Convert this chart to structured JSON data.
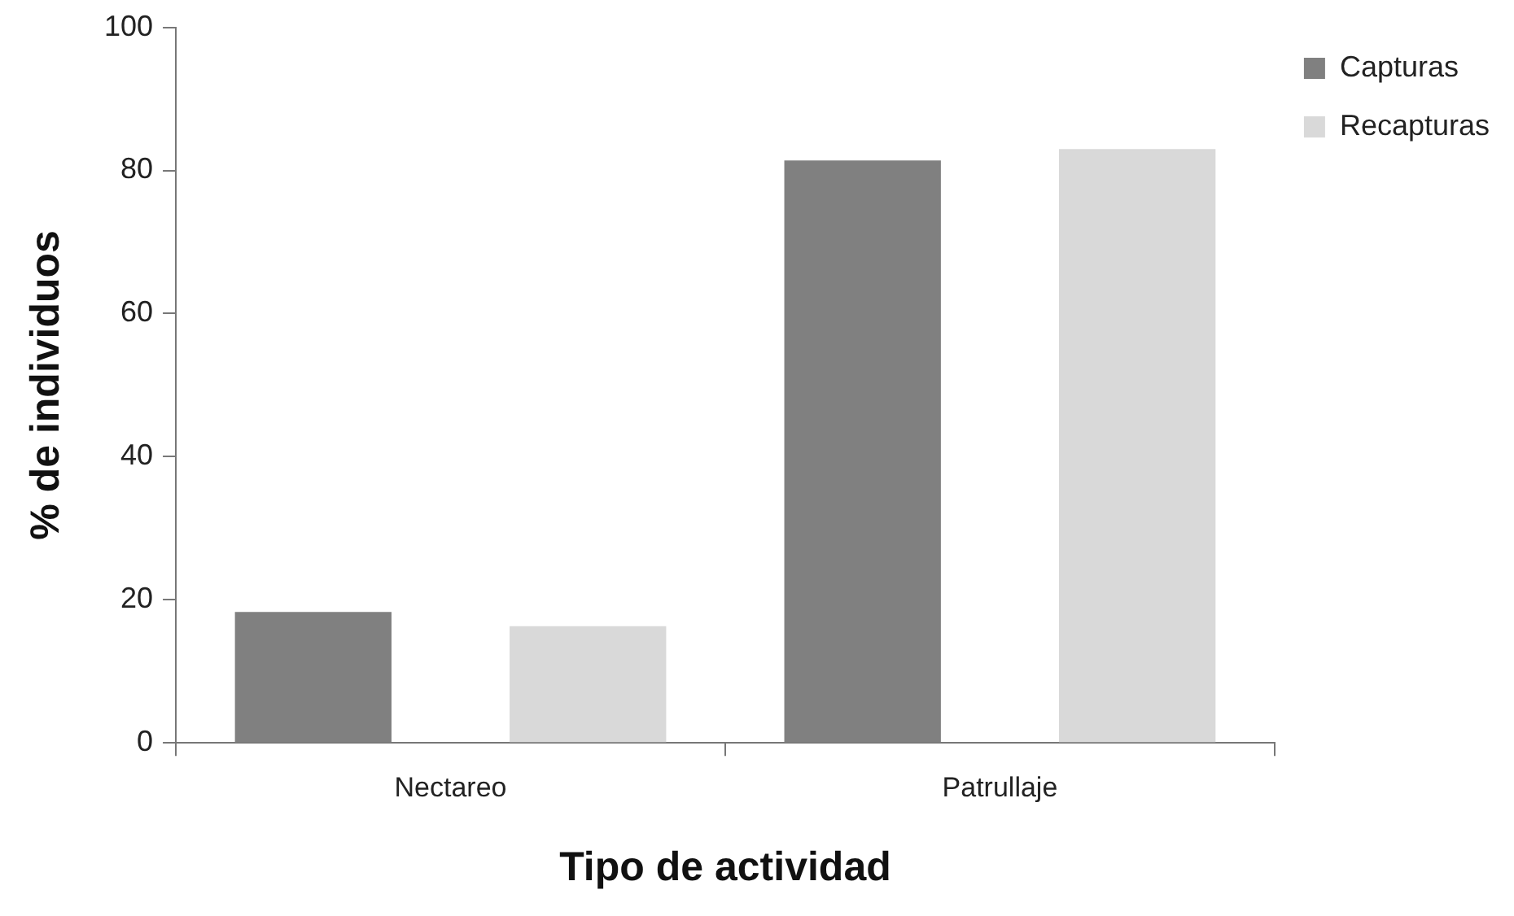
{
  "chart_data": {
    "type": "bar",
    "xlabel": "Tipo de actividad",
    "ylabel": "% de individuos",
    "categories": [
      "Nectareo",
      "Patrullaje"
    ],
    "series": [
      {
        "name": "Capturas",
        "color": "#808080",
        "values": [
          18.3,
          81.4
        ]
      },
      {
        "name": "Recapturas",
        "color": "#d9d9d9",
        "values": [
          16.3,
          83.0
        ]
      }
    ],
    "ylim": [
      0,
      100
    ],
    "yticks": [
      0,
      20,
      40,
      60,
      80,
      100
    ],
    "grid": false,
    "legend": "top right"
  }
}
